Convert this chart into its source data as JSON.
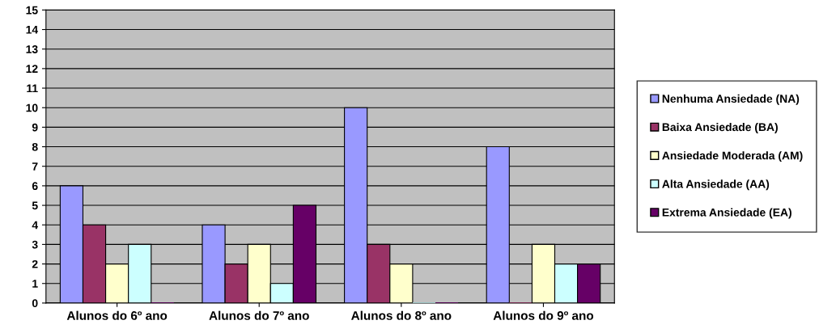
{
  "chart_data": {
    "type": "bar",
    "categories": [
      "Alunos do 6º ano",
      "Alunos do 7º ano",
      "Alunos do 8º ano",
      "Alunos do 9º ano"
    ],
    "series": [
      {
        "name": "Nenhuma Ansiedade (NA)",
        "color": "#9999ff",
        "values": [
          6,
          4,
          10,
          8
        ]
      },
      {
        "name": "Baixa Ansiedade (BA)",
        "color": "#993366",
        "values": [
          4,
          2,
          3,
          0
        ]
      },
      {
        "name": "Ansiedade Moderada (AM)",
        "color": "#ffffcc",
        "values": [
          2,
          3,
          2,
          3
        ]
      },
      {
        "name": "Alta Ansiedade (AA)",
        "color": "#ccffff",
        "values": [
          3,
          1,
          0,
          2
        ]
      },
      {
        "name": "Extrema Ansiedade (EA)",
        "color": "#660066",
        "values": [
          0,
          5,
          0,
          2
        ]
      }
    ],
    "ylim": [
      0,
      15
    ],
    "yticks": [
      0,
      1,
      2,
      3,
      4,
      5,
      6,
      7,
      8,
      9,
      10,
      11,
      12,
      13,
      14,
      15
    ],
    "grid": "y",
    "legend": "right"
  }
}
